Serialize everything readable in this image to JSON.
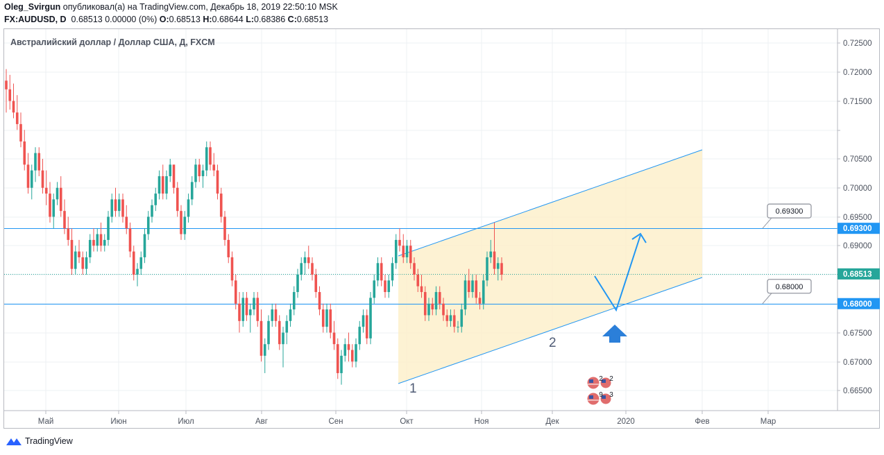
{
  "header": {
    "author": "Oleg_Svirgun",
    "published": "опубликовал(а) на TradingView.com, Декабрь 18, 2019 22:50:10 MSK",
    "symbol": "FX:AUDUSD, D",
    "price_line": "0.68513 0.00000 (0%)",
    "o_label": "O:",
    "o_val": "0.68513",
    "h_label": "H:",
    "h_val": "0.68644",
    "l_label": "L:",
    "l_val": "0.68386",
    "c_label": "C:",
    "c_val": "0.68513"
  },
  "footer": {
    "brand": "TradingView"
  },
  "colors": {
    "up": "#26a69a",
    "down": "#ef5350",
    "line": "#2196f3",
    "channel": "#fdefc8",
    "grid": "#eef0f3",
    "axis_text": "#4c525e"
  },
  "chart_data": {
    "type": "candlestick",
    "title": "Австралийский доллар / Доллар США, Д, FXCM",
    "y_range": [
      0.662,
      0.7265
    ],
    "y_ticks": [
      "0.72500",
      "0.72000",
      "0.71500",
      "0.70500",
      "0.70000",
      "0.69500",
      "0.69000",
      "0.67500",
      "0.67000",
      "0.66500"
    ],
    "x_ticks": [
      "Май",
      "Июн",
      "Июл",
      "Авг",
      "Сен",
      "Окт",
      "Ноя",
      "Дек",
      "2020",
      "Фев",
      "Мар"
    ],
    "price_labels": [
      {
        "value": 0.693,
        "text": "0.69300",
        "bg": "#2196f3"
      },
      {
        "value": 0.68513,
        "text": "0.68513",
        "bg": "#26a69a"
      },
      {
        "value": 0.68,
        "text": "0.68000",
        "bg": "#2196f3"
      }
    ],
    "horizontal_lines": [
      {
        "value": 0.693,
        "style": "solid",
        "callout": "0.69300"
      },
      {
        "value": 0.68513,
        "style": "dotted"
      },
      {
        "value": 0.68,
        "style": "solid",
        "callout": "0.68000"
      }
    ],
    "annotations": [
      "1",
      "2"
    ],
    "events": [
      {
        "type": "economic",
        "count": "2",
        "count2": "2"
      },
      {
        "type": "economic",
        "count": "9",
        "count2": "3"
      }
    ],
    "candles": [
      [
        0.7185,
        0.7205,
        0.713,
        0.717
      ],
      [
        0.717,
        0.7195,
        0.7135,
        0.715
      ],
      [
        0.715,
        0.718,
        0.712,
        0.713
      ],
      [
        0.713,
        0.716,
        0.71,
        0.711
      ],
      [
        0.711,
        0.713,
        0.707,
        0.708
      ],
      [
        0.708,
        0.71,
        0.703,
        0.704
      ],
      [
        0.704,
        0.706,
        0.699,
        0.7
      ],
      [
        0.7,
        0.704,
        0.698,
        0.703
      ],
      [
        0.703,
        0.707,
        0.701,
        0.706
      ],
      [
        0.706,
        0.707,
        0.702,
        0.703
      ],
      [
        0.703,
        0.705,
        0.699,
        0.7
      ],
      [
        0.7,
        0.703,
        0.697,
        0.699
      ],
      [
        0.699,
        0.701,
        0.694,
        0.695
      ],
      [
        0.695,
        0.699,
        0.693,
        0.698
      ],
      [
        0.698,
        0.701,
        0.697,
        0.7
      ],
      [
        0.7,
        0.702,
        0.695,
        0.696
      ],
      [
        0.696,
        0.698,
        0.692,
        0.693
      ],
      [
        0.693,
        0.695,
        0.69,
        0.691
      ],
      [
        0.691,
        0.693,
        0.685,
        0.686
      ],
      [
        0.686,
        0.69,
        0.685,
        0.689
      ],
      [
        0.689,
        0.691,
        0.687,
        0.688
      ],
      [
        0.688,
        0.689,
        0.685,
        0.686
      ],
      [
        0.686,
        0.689,
        0.685,
        0.688
      ],
      [
        0.688,
        0.692,
        0.687,
        0.691
      ],
      [
        0.691,
        0.693,
        0.689,
        0.69
      ],
      [
        0.69,
        0.693,
        0.689,
        0.692
      ],
      [
        0.692,
        0.694,
        0.689,
        0.69
      ],
      [
        0.69,
        0.692,
        0.689,
        0.691
      ],
      [
        0.691,
        0.696,
        0.69,
        0.695
      ],
      [
        0.695,
        0.699,
        0.694,
        0.698
      ],
      [
        0.698,
        0.7,
        0.695,
        0.696
      ],
      [
        0.696,
        0.699,
        0.695,
        0.698
      ],
      [
        0.698,
        0.699,
        0.694,
        0.695
      ],
      [
        0.695,
        0.697,
        0.692,
        0.693
      ],
      [
        0.693,
        0.694,
        0.688,
        0.689
      ],
      [
        0.689,
        0.69,
        0.684,
        0.685
      ],
      [
        0.685,
        0.687,
        0.683,
        0.686
      ],
      [
        0.686,
        0.689,
        0.685,
        0.688
      ],
      [
        0.688,
        0.693,
        0.687,
        0.692
      ],
      [
        0.692,
        0.696,
        0.691,
        0.695
      ],
      [
        0.695,
        0.698,
        0.694,
        0.697
      ],
      [
        0.697,
        0.7,
        0.696,
        0.699
      ],
      [
        0.699,
        0.703,
        0.698,
        0.702
      ],
      [
        0.702,
        0.704,
        0.698,
        0.699
      ],
      [
        0.699,
        0.703,
        0.698,
        0.702
      ],
      [
        0.702,
        0.705,
        0.701,
        0.704
      ],
      [
        0.704,
        0.704,
        0.699,
        0.7
      ],
      [
        0.7,
        0.701,
        0.695,
        0.696
      ],
      [
        0.696,
        0.697,
        0.691,
        0.692
      ],
      [
        0.692,
        0.696,
        0.691,
        0.695
      ],
      [
        0.695,
        0.699,
        0.694,
        0.698
      ],
      [
        0.698,
        0.702,
        0.697,
        0.701
      ],
      [
        0.701,
        0.705,
        0.7,
        0.704
      ],
      [
        0.704,
        0.705,
        0.701,
        0.702
      ],
      [
        0.702,
        0.704,
        0.7,
        0.703
      ],
      [
        0.703,
        0.708,
        0.702,
        0.707
      ],
      [
        0.707,
        0.708,
        0.703,
        0.704
      ],
      [
        0.704,
        0.706,
        0.702,
        0.703
      ],
      [
        0.703,
        0.704,
        0.698,
        0.699
      ],
      [
        0.699,
        0.7,
        0.694,
        0.695
      ],
      [
        0.695,
        0.696,
        0.69,
        0.691
      ],
      [
        0.691,
        0.692,
        0.687,
        0.688
      ],
      [
        0.688,
        0.689,
        0.683,
        0.684
      ],
      [
        0.684,
        0.685,
        0.679,
        0.68
      ],
      [
        0.68,
        0.682,
        0.675,
        0.677
      ],
      [
        0.677,
        0.682,
        0.676,
        0.681
      ],
      [
        0.681,
        0.682,
        0.677,
        0.678
      ],
      [
        0.678,
        0.68,
        0.675,
        0.679
      ],
      [
        0.679,
        0.682,
        0.678,
        0.681
      ],
      [
        0.681,
        0.682,
        0.676,
        0.677
      ],
      [
        0.677,
        0.679,
        0.67,
        0.671
      ],
      [
        0.671,
        0.674,
        0.668,
        0.673
      ],
      [
        0.673,
        0.678,
        0.672,
        0.677
      ],
      [
        0.677,
        0.68,
        0.676,
        0.679
      ],
      [
        0.679,
        0.68,
        0.676,
        0.677
      ],
      [
        0.677,
        0.678,
        0.672,
        0.673
      ],
      [
        0.673,
        0.676,
        0.669,
        0.675
      ],
      [
        0.675,
        0.678,
        0.673,
        0.677
      ],
      [
        0.677,
        0.68,
        0.676,
        0.679
      ],
      [
        0.679,
        0.683,
        0.678,
        0.682
      ],
      [
        0.682,
        0.686,
        0.681,
        0.685
      ],
      [
        0.685,
        0.688,
        0.684,
        0.687
      ],
      [
        0.687,
        0.689,
        0.685,
        0.688
      ],
      [
        0.688,
        0.69,
        0.686,
        0.687
      ],
      [
        0.687,
        0.688,
        0.684,
        0.685
      ],
      [
        0.685,
        0.686,
        0.681,
        0.682
      ],
      [
        0.682,
        0.683,
        0.678,
        0.679
      ],
      [
        0.679,
        0.68,
        0.675,
        0.676
      ],
      [
        0.676,
        0.68,
        0.675,
        0.679
      ],
      [
        0.679,
        0.68,
        0.674,
        0.675
      ],
      [
        0.675,
        0.677,
        0.672,
        0.673
      ],
      [
        0.673,
        0.674,
        0.667,
        0.668
      ],
      [
        0.668,
        0.672,
        0.666,
        0.671
      ],
      [
        0.671,
        0.674,
        0.67,
        0.673
      ],
      [
        0.673,
        0.675,
        0.67,
        0.672
      ],
      [
        0.672,
        0.673,
        0.669,
        0.67
      ],
      [
        0.67,
        0.674,
        0.669,
        0.673
      ],
      [
        0.673,
        0.677,
        0.672,
        0.676
      ],
      [
        0.676,
        0.679,
        0.675,
        0.678
      ],
      [
        0.678,
        0.679,
        0.673,
        0.674
      ],
      [
        0.674,
        0.682,
        0.673,
        0.681
      ],
      [
        0.681,
        0.685,
        0.68,
        0.684
      ],
      [
        0.684,
        0.688,
        0.683,
        0.687
      ],
      [
        0.687,
        0.688,
        0.683,
        0.684
      ],
      [
        0.684,
        0.685,
        0.681,
        0.682
      ],
      [
        0.682,
        0.685,
        0.681,
        0.684
      ],
      [
        0.684,
        0.688,
        0.683,
        0.687
      ],
      [
        0.687,
        0.692,
        0.686,
        0.691
      ],
      [
        0.691,
        0.693,
        0.689,
        0.69
      ],
      [
        0.69,
        0.692,
        0.687,
        0.688
      ],
      [
        0.688,
        0.691,
        0.687,
        0.69
      ],
      [
        0.69,
        0.691,
        0.686,
        0.687
      ],
      [
        0.687,
        0.688,
        0.684,
        0.685
      ],
      [
        0.685,
        0.686,
        0.682,
        0.683
      ],
      [
        0.683,
        0.685,
        0.681,
        0.682
      ],
      [
        0.682,
        0.683,
        0.677,
        0.678
      ],
      [
        0.678,
        0.681,
        0.677,
        0.68
      ],
      [
        0.68,
        0.681,
        0.678,
        0.679
      ],
      [
        0.679,
        0.683,
        0.678,
        0.682
      ],
      [
        0.682,
        0.683,
        0.679,
        0.68
      ],
      [
        0.68,
        0.681,
        0.677,
        0.678
      ],
      [
        0.678,
        0.679,
        0.676,
        0.677
      ],
      [
        0.677,
        0.679,
        0.676,
        0.678
      ],
      [
        0.678,
        0.679,
        0.675,
        0.676
      ],
      [
        0.676,
        0.677,
        0.675,
        0.676
      ],
      [
        0.676,
        0.68,
        0.675,
        0.679
      ],
      [
        0.679,
        0.685,
        0.678,
        0.684
      ],
      [
        0.684,
        0.686,
        0.681,
        0.682
      ],
      [
        0.682,
        0.685,
        0.681,
        0.684
      ],
      [
        0.684,
        0.685,
        0.68,
        0.681
      ],
      [
        0.681,
        0.682,
        0.679,
        0.68
      ],
      [
        0.68,
        0.685,
        0.679,
        0.684
      ],
      [
        0.684,
        0.689,
        0.683,
        0.688
      ],
      [
        0.688,
        0.691,
        0.687,
        0.689
      ],
      [
        0.689,
        0.694,
        0.685,
        0.686
      ],
      [
        0.686,
        0.688,
        0.684,
        0.687
      ],
      [
        0.687,
        0.688,
        0.684,
        0.685
      ]
    ]
  }
}
